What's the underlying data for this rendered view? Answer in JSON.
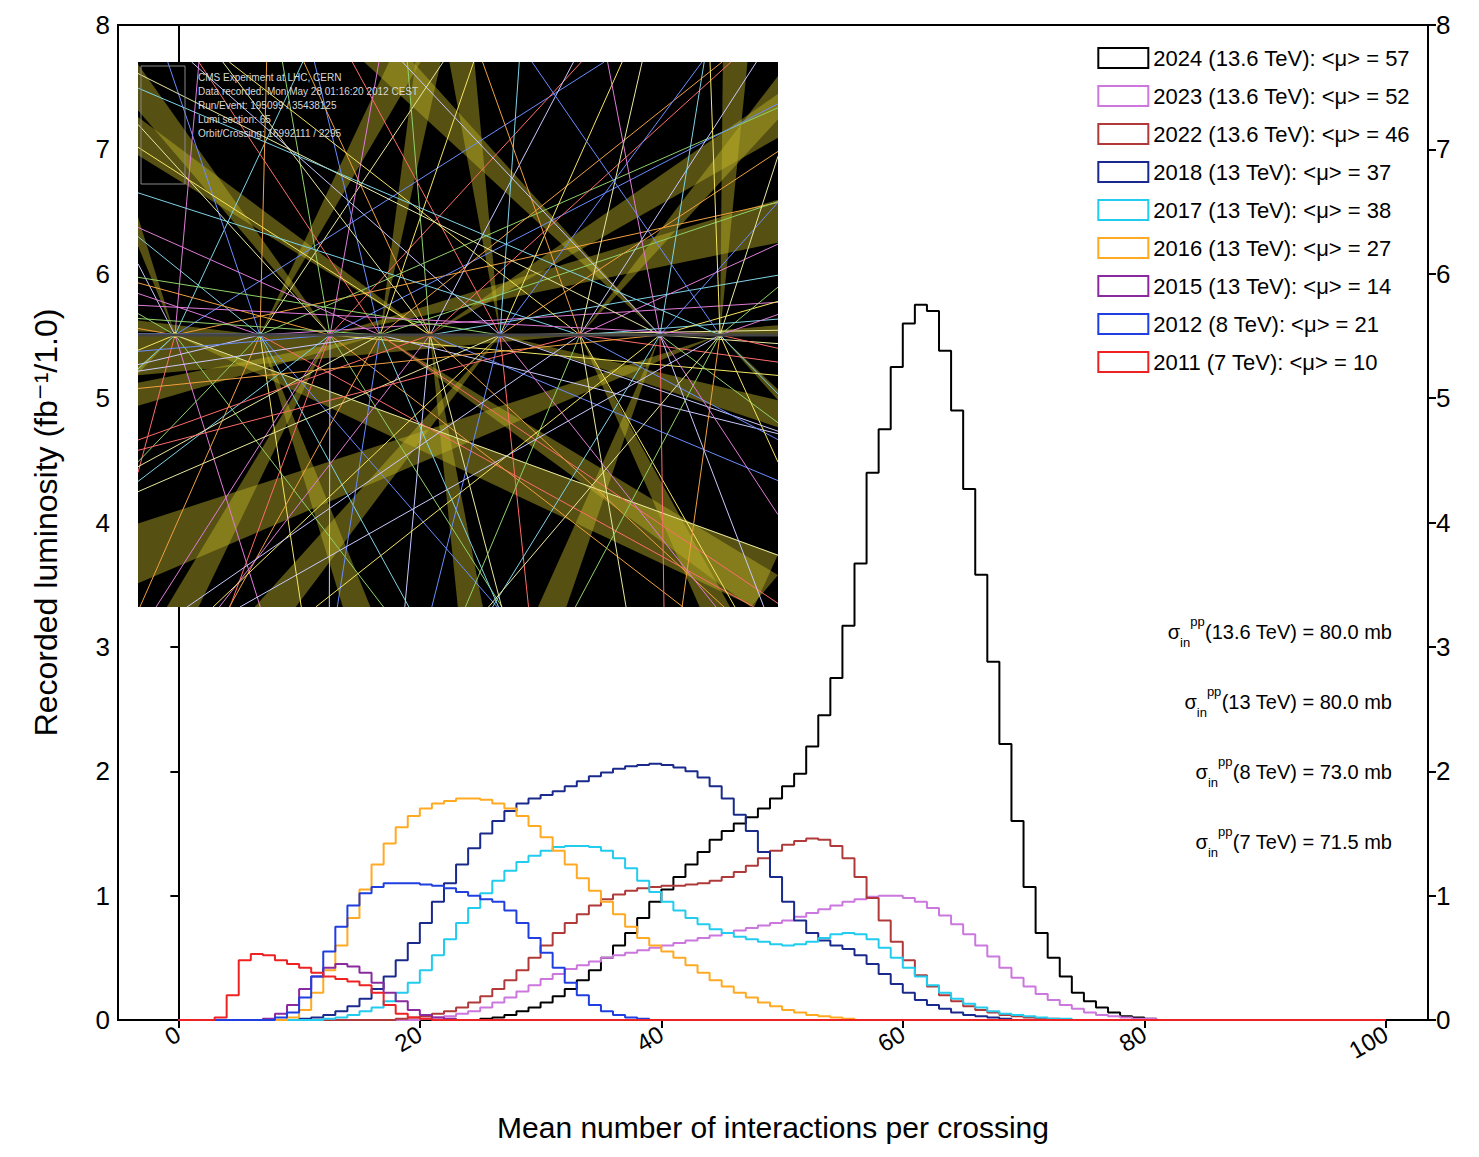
{
  "chart_data": {
    "type": "histogram",
    "x_label": "Mean number of interactions per crossing",
    "y_label": "Recorded luminosity (fb⁻¹/1.0)",
    "xlim": [
      -5,
      103.5
    ],
    "xticks": [
      0,
      20,
      40,
      60,
      80,
      100
    ],
    "ylim": [
      0,
      8
    ],
    "yticks": [
      0,
      1,
      2,
      3,
      4,
      5,
      6,
      7,
      8
    ],
    "y2lim": [
      0,
      8
    ],
    "y2ticks": [
      0,
      1,
      2,
      3,
      4,
      5,
      6,
      7,
      8
    ],
    "grid": false,
    "legend": "top-right",
    "bins": [
      0,
      1,
      2,
      3,
      4,
      5,
      6,
      7,
      8,
      9,
      10,
      11,
      12,
      13,
      14,
      15,
      16,
      17,
      18,
      19,
      20,
      21,
      22,
      23,
      24,
      25,
      26,
      27,
      28,
      29,
      30,
      31,
      32,
      33,
      34,
      35,
      36,
      37,
      38,
      39,
      40,
      41,
      42,
      43,
      44,
      45,
      46,
      47,
      48,
      49,
      50,
      51,
      52,
      53,
      54,
      55,
      56,
      57,
      58,
      59,
      60,
      61,
      62,
      63,
      64,
      65,
      66,
      67,
      68,
      69,
      70,
      71,
      72,
      73,
      74,
      75,
      76,
      77,
      78,
      79,
      80,
      81,
      82,
      83,
      84,
      85,
      86,
      87,
      88,
      89,
      90,
      91,
      92,
      93,
      94,
      95,
      96,
      97,
      98,
      99,
      100
    ],
    "series": [
      {
        "name": "2024 (13.6 TeV): <μ> = 57",
        "color": "#000000",
        "values": [
          0,
          0,
          0,
          0,
          0,
          0,
          0,
          0,
          0,
          0,
          0,
          0,
          0,
          0,
          0,
          0,
          0,
          0,
          0,
          0,
          0,
          0,
          0,
          0,
          0,
          0.01,
          0.02,
          0.04,
          0.07,
          0.1,
          0.14,
          0.19,
          0.25,
          0.32,
          0.4,
          0.5,
          0.6,
          0.7,
          0.82,
          0.95,
          1.05,
          1.15,
          1.25,
          1.35,
          1.45,
          1.52,
          1.58,
          1.63,
          1.7,
          1.78,
          1.88,
          1.98,
          2.2,
          2.45,
          2.75,
          3.17,
          3.67,
          4.4,
          4.75,
          5.25,
          5.6,
          5.75,
          5.7,
          5.38,
          4.9,
          4.27,
          3.58,
          2.88,
          2.22,
          1.6,
          1.07,
          0.7,
          0.5,
          0.35,
          0.22,
          0.15,
          0.1,
          0.06,
          0.03,
          0.02,
          0.01,
          0,
          0,
          0,
          0,
          0,
          0,
          0,
          0,
          0,
          0,
          0,
          0,
          0,
          0,
          0,
          0,
          0,
          0,
          0
        ]
      },
      {
        "name": "2023 (13.6 TeV): <μ> = 52",
        "color": "#cc77dd",
        "values": [
          0,
          0,
          0,
          0,
          0,
          0,
          0,
          0,
          0,
          0,
          0,
          0,
          0,
          0,
          0,
          0,
          0,
          0,
          0,
          0,
          0.01,
          0.02,
          0.03,
          0.05,
          0.07,
          0.1,
          0.14,
          0.18,
          0.23,
          0.28,
          0.33,
          0.37,
          0.41,
          0.44,
          0.47,
          0.5,
          0.52,
          0.54,
          0.56,
          0.58,
          0.6,
          0.62,
          0.64,
          0.66,
          0.68,
          0.7,
          0.72,
          0.74,
          0.76,
          0.78,
          0.8,
          0.83,
          0.86,
          0.89,
          0.92,
          0.95,
          0.97,
          0.99,
          1,
          1,
          0.98,
          0.95,
          0.9,
          0.84,
          0.77,
          0.69,
          0.6,
          0.51,
          0.42,
          0.34,
          0.27,
          0.21,
          0.16,
          0.12,
          0.09,
          0.06,
          0.04,
          0.03,
          0.02,
          0.01,
          0.01,
          0,
          0,
          0,
          0,
          0,
          0,
          0,
          0,
          0,
          0,
          0,
          0,
          0,
          0,
          0,
          0,
          0,
          0,
          0
        ]
      },
      {
        "name": "2022 (13.6 TeV): <μ> = 46",
        "color": "#b03a3a",
        "values": [
          0,
          0,
          0,
          0,
          0,
          0,
          0,
          0,
          0,
          0,
          0,
          0,
          0,
          0,
          0,
          0,
          0,
          0,
          0.01,
          0.02,
          0.03,
          0.05,
          0.07,
          0.1,
          0.14,
          0.19,
          0.25,
          0.32,
          0.4,
          0.5,
          0.6,
          0.7,
          0.78,
          0.85,
          0.92,
          0.97,
          1.01,
          1.04,
          1.06,
          1.07,
          1.08,
          1.08,
          1.09,
          1.1,
          1.12,
          1.15,
          1.19,
          1.24,
          1.3,
          1.36,
          1.41,
          1.44,
          1.46,
          1.45,
          1.4,
          1.3,
          1.15,
          0.98,
          0.8,
          0.63,
          0.48,
          0.36,
          0.27,
          0.2,
          0.15,
          0.11,
          0.08,
          0.06,
          0.04,
          0.03,
          0.02,
          0.01,
          0.01,
          0,
          0,
          0,
          0,
          0,
          0,
          0,
          0,
          0,
          0,
          0,
          0,
          0,
          0,
          0,
          0,
          0,
          0,
          0,
          0,
          0,
          0,
          0,
          0,
          0,
          0,
          0
        ]
      },
      {
        "name": "2018 (13 TeV): <μ> = 37",
        "color": "#1a2a8c",
        "values": [
          0,
          0,
          0,
          0,
          0,
          0,
          0,
          0,
          0,
          0,
          0.01,
          0.02,
          0.04,
          0.07,
          0.11,
          0.17,
          0.25,
          0.35,
          0.48,
          0.62,
          0.78,
          0.95,
          1.1,
          1.25,
          1.38,
          1.5,
          1.6,
          1.68,
          1.74,
          1.78,
          1.81,
          1.84,
          1.88,
          1.92,
          1.96,
          1.99,
          2.02,
          2.04,
          2.05,
          2.06,
          2.05,
          2.03,
          2,
          1.95,
          1.88,
          1.78,
          1.65,
          1.52,
          1.35,
          1.15,
          0.95,
          0.8,
          0.7,
          0.64,
          0.6,
          0.57,
          0.52,
          0.45,
          0.37,
          0.29,
          0.22,
          0.16,
          0.12,
          0.09,
          0.06,
          0.04,
          0.03,
          0.02,
          0.01,
          0,
          0,
          0,
          0,
          0,
          0,
          0,
          0,
          0,
          0,
          0,
          0,
          0,
          0,
          0,
          0,
          0,
          0,
          0,
          0,
          0,
          0,
          0,
          0,
          0,
          0,
          0,
          0,
          0,
          0,
          0
        ]
      },
      {
        "name": "2017 (13 TeV): <μ> = 38",
        "color": "#22ccee",
        "values": [
          0,
          0,
          0,
          0,
          0,
          0,
          0,
          0,
          0,
          0,
          0,
          0,
          0.01,
          0.02,
          0.04,
          0.07,
          0.1,
          0.15,
          0.22,
          0.3,
          0.4,
          0.52,
          0.65,
          0.78,
          0.9,
          1.02,
          1.12,
          1.2,
          1.27,
          1.32,
          1.36,
          1.39,
          1.4,
          1.4,
          1.39,
          1.36,
          1.3,
          1.22,
          1.12,
          1.03,
          0.95,
          0.88,
          0.82,
          0.77,
          0.73,
          0.7,
          0.67,
          0.65,
          0.63,
          0.61,
          0.6,
          0.61,
          0.63,
          0.66,
          0.69,
          0.7,
          0.69,
          0.65,
          0.58,
          0.5,
          0.42,
          0.35,
          0.28,
          0.22,
          0.17,
          0.13,
          0.1,
          0.07,
          0.05,
          0.04,
          0.03,
          0.02,
          0.01,
          0.01,
          0,
          0,
          0,
          0,
          0,
          0,
          0,
          0,
          0,
          0,
          0,
          0,
          0,
          0,
          0,
          0,
          0,
          0,
          0,
          0,
          0,
          0,
          0,
          0,
          0,
          0
        ]
      },
      {
        "name": "2016 (13 TeV): <μ> = 27",
        "color": "#ffaa22",
        "values": [
          0,
          0,
          0,
          0,
          0,
          0,
          0,
          0,
          0,
          0.02,
          0.08,
          0.22,
          0.4,
          0.6,
          0.82,
          1.05,
          1.25,
          1.42,
          1.55,
          1.64,
          1.7,
          1.74,
          1.76,
          1.78,
          1.78,
          1.77,
          1.74,
          1.7,
          1.64,
          1.56,
          1.47,
          1.36,
          1.25,
          1.14,
          1.04,
          0.95,
          0.85,
          0.75,
          0.66,
          0.6,
          0.55,
          0.5,
          0.44,
          0.38,
          0.32,
          0.27,
          0.22,
          0.18,
          0.14,
          0.11,
          0.08,
          0.06,
          0.04,
          0.03,
          0.02,
          0.01,
          0,
          0,
          0,
          0,
          0,
          0,
          0,
          0,
          0,
          0,
          0,
          0,
          0,
          0,
          0,
          0,
          0,
          0,
          0,
          0,
          0,
          0,
          0,
          0,
          0,
          0,
          0,
          0,
          0,
          0,
          0,
          0,
          0,
          0,
          0,
          0,
          0,
          0,
          0,
          0,
          0,
          0,
          0,
          0
        ]
      },
      {
        "name": "2015 (13 TeV): <μ> = 14",
        "color": "#8a2a9e",
        "values": [
          0,
          0,
          0,
          0,
          0,
          0,
          0,
          0.01,
          0.05,
          0.12,
          0.25,
          0.35,
          0.42,
          0.45,
          0.43,
          0.38,
          0.3,
          0.22,
          0.15,
          0.08,
          0.04,
          0.02,
          0.01,
          0,
          0,
          0,
          0,
          0,
          0,
          0,
          0,
          0,
          0,
          0,
          0,
          0,
          0,
          0,
          0,
          0,
          0,
          0,
          0,
          0,
          0,
          0,
          0,
          0,
          0,
          0,
          0,
          0,
          0,
          0,
          0,
          0,
          0,
          0,
          0,
          0,
          0,
          0,
          0,
          0,
          0,
          0,
          0,
          0,
          0,
          0,
          0,
          0,
          0,
          0,
          0,
          0,
          0,
          0,
          0,
          0,
          0,
          0,
          0,
          0,
          0,
          0,
          0,
          0,
          0,
          0,
          0,
          0,
          0,
          0,
          0,
          0,
          0,
          0,
          0,
          0
        ]
      },
      {
        "name": "2012 (8 TeV): <μ> = 21",
        "color": "#1f3fe0",
        "values": [
          0,
          0,
          0,
          0,
          0,
          0,
          0,
          0,
          0.02,
          0.06,
          0.18,
          0.35,
          0.55,
          0.75,
          0.92,
          1.02,
          1.07,
          1.1,
          1.1,
          1.1,
          1.09,
          1.08,
          1.06,
          1.03,
          1,
          0.97,
          0.95,
          0.88,
          0.78,
          0.66,
          0.54,
          0.42,
          0.3,
          0.2,
          0.12,
          0.07,
          0.04,
          0.02,
          0.01,
          0,
          0,
          0,
          0,
          0,
          0,
          0,
          0,
          0,
          0,
          0,
          0,
          0,
          0,
          0,
          0,
          0,
          0,
          0,
          0,
          0,
          0,
          0,
          0,
          0,
          0,
          0,
          0,
          0,
          0,
          0,
          0,
          0,
          0,
          0,
          0,
          0,
          0,
          0,
          0,
          0,
          0,
          0,
          0,
          0,
          0,
          0,
          0,
          0,
          0,
          0,
          0,
          0,
          0,
          0,
          0,
          0,
          0,
          0,
          0,
          0
        ]
      },
      {
        "name": "2011 (7 TeV): <μ> = 10",
        "color": "#ee2222",
        "values": [
          0,
          0,
          0,
          0.02,
          0.2,
          0.48,
          0.53,
          0.52,
          0.48,
          0.45,
          0.42,
          0.38,
          0.35,
          0.33,
          0.31,
          0.28,
          0.22,
          0.12,
          0.05,
          0.02,
          0.01,
          0,
          0,
          0,
          0,
          0,
          0,
          0,
          0,
          0,
          0,
          0,
          0,
          0,
          0,
          0,
          0,
          0,
          0,
          0,
          0,
          0,
          0,
          0,
          0,
          0,
          0,
          0,
          0,
          0,
          0,
          0,
          0,
          0,
          0,
          0,
          0,
          0,
          0,
          0,
          0,
          0,
          0,
          0,
          0,
          0,
          0,
          0,
          0,
          0,
          0,
          0,
          0,
          0,
          0,
          0,
          0,
          0,
          0,
          0,
          0,
          0,
          0,
          0,
          0,
          0,
          0,
          0,
          0,
          0,
          0,
          0,
          0,
          0,
          0,
          0,
          0,
          0,
          0,
          0
        ]
      }
    ],
    "annotations": [
      {
        "symbol": "σ",
        "sub": "in",
        "sup": "pp",
        "text": "(13.6 TeV) = 80.0 mb"
      },
      {
        "symbol": "σ",
        "sub": "in",
        "sup": "pp",
        "text": "(13 TeV) = 80.0 mb"
      },
      {
        "symbol": "σ",
        "sub": "in",
        "sup": "pp",
        "text": "(8 TeV) = 73.0 mb"
      },
      {
        "symbol": "σ",
        "sub": "in",
        "sup": "pp",
        "text": "(7 TeV) = 71.5 mb"
      }
    ],
    "inset_text": [
      "CMS Experiment at LHC, CERN",
      "Data recorded: Mon May 28 01:16:20 2012 CEST",
      "Run/Event: 195099 / 35438125",
      "Lumi section: 65",
      "Orbit/Crossing: 16992111 / 2295"
    ]
  }
}
